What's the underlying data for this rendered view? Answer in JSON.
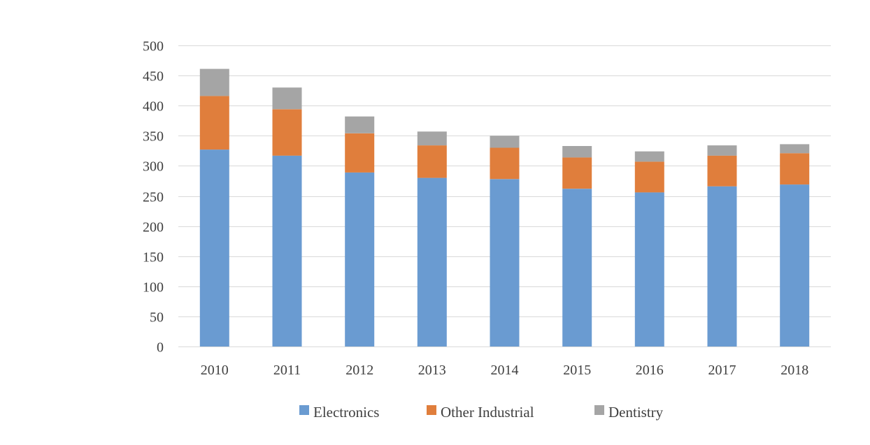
{
  "chart_data": {
    "type": "bar",
    "stacked": true,
    "title": "",
    "xlabel": "",
    "ylabel": "",
    "ylim": [
      0,
      500
    ],
    "y_ticks": [
      0,
      50,
      100,
      150,
      200,
      250,
      300,
      350,
      400,
      450,
      500
    ],
    "grid": true,
    "legend_position": "bottom",
    "categories": [
      "2010",
      "2011",
      "2012",
      "2013",
      "2014",
      "2015",
      "2016",
      "2017",
      "2018"
    ],
    "series": [
      {
        "name": "Electronics",
        "color": "#6A9BD1",
        "values": [
          327,
          317,
          289,
          280,
          278,
          262,
          256,
          266,
          269
        ]
      },
      {
        "name": "Other Industrial",
        "color": "#E07E3C",
        "values": [
          89,
          77,
          65,
          54,
          52,
          52,
          51,
          51,
          52
        ]
      },
      {
        "name": "Dentistry",
        "color": "#A5A5A5",
        "values": [
          45,
          36,
          28,
          23,
          20,
          19,
          17,
          17,
          15
        ]
      }
    ]
  },
  "colors": {
    "gridline": "#D9D9D9",
    "axis_text": "#404040"
  }
}
